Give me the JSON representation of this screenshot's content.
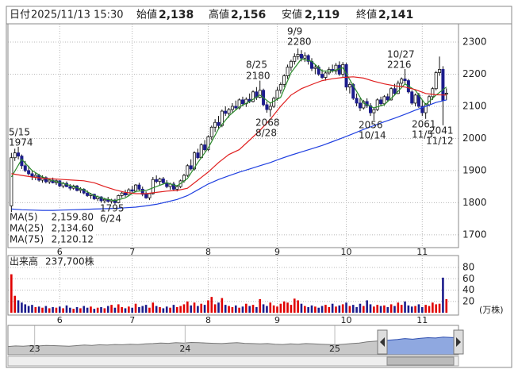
{
  "chart_data": {
    "type": "candlestick",
    "header": {
      "date_label": "日付",
      "date": "2025/11/13 15:30",
      "open_label": "始値",
      "open": {
        "value": 2138,
        "label": "2,138"
      },
      "high_label": "高値",
      "high": {
        "value": 2156,
        "label": "2,156"
      },
      "low_label": "安値",
      "low": {
        "value": 2119,
        "label": "2,119"
      },
      "close_label": "終値",
      "close": {
        "value": 2141,
        "label": "2,141"
      }
    },
    "up_color": "#ffffff",
    "down_color": "#1c1c8c",
    "high_color": "#e00000",
    "low_color": "#108010",
    "xlim": [
      -1,
      129.5
    ],
    "xticks": [
      {
        "value": 14,
        "label": "6"
      },
      {
        "value": 35,
        "label": "7"
      },
      {
        "value": 57,
        "label": "8"
      },
      {
        "value": 77,
        "label": "9"
      },
      {
        "value": 97,
        "label": "10"
      },
      {
        "value": 119,
        "label": "11"
      }
    ],
    "ylim": [
      1660,
      2357
    ],
    "yticks": [
      1700,
      1800,
      1900,
      2000,
      2100,
      2200,
      2300
    ],
    "grid": true,
    "candles": [
      [
        1790,
        1955,
        1770,
        1940
      ],
      [
        1940,
        1968,
        1930,
        1955
      ],
      [
        1955,
        1974,
        1935,
        1945
      ],
      [
        1945,
        1950,
        1905,
        1915
      ],
      [
        1915,
        1930,
        1895,
        1900
      ],
      [
        1900,
        1915,
        1885,
        1890
      ],
      [
        1890,
        1900,
        1870,
        1880
      ],
      [
        1880,
        1895,
        1870,
        1885
      ],
      [
        1885,
        1890,
        1865,
        1870
      ],
      [
        1870,
        1885,
        1862,
        1878
      ],
      [
        1878,
        1882,
        1860,
        1865
      ],
      [
        1865,
        1875,
        1858,
        1870
      ],
      [
        1870,
        1878,
        1860,
        1862
      ],
      [
        1862,
        1872,
        1855,
        1868
      ],
      [
        1868,
        1870,
        1848,
        1852
      ],
      [
        1852,
        1865,
        1845,
        1860
      ],
      [
        1860,
        1866,
        1848,
        1850
      ],
      [
        1850,
        1858,
        1838,
        1845
      ],
      [
        1845,
        1856,
        1840,
        1852
      ],
      [
        1852,
        1855,
        1835,
        1838
      ],
      [
        1838,
        1848,
        1830,
        1842
      ],
      [
        1842,
        1845,
        1826,
        1830
      ],
      [
        1830,
        1838,
        1818,
        1822
      ],
      [
        1822,
        1830,
        1812,
        1826
      ],
      [
        1826,
        1828,
        1808,
        1812
      ],
      [
        1812,
        1822,
        1805,
        1818
      ],
      [
        1818,
        1820,
        1800,
        1806
      ],
      [
        1806,
        1815,
        1798,
        1810
      ],
      [
        1810,
        1818,
        1800,
        1804
      ],
      [
        1804,
        1812,
        1797,
        1808
      ],
      [
        1808,
        1812,
        1795,
        1800
      ],
      [
        1800,
        1825,
        1798,
        1822
      ],
      [
        1822,
        1835,
        1815,
        1830
      ],
      [
        1830,
        1840,
        1818,
        1824
      ],
      [
        1824,
        1845,
        1820,
        1840
      ],
      [
        1840,
        1852,
        1830,
        1836
      ],
      [
        1836,
        1858,
        1832,
        1855
      ],
      [
        1855,
        1862,
        1838,
        1842
      ],
      [
        1842,
        1850,
        1820,
        1826
      ],
      [
        1826,
        1835,
        1812,
        1815
      ],
      [
        1815,
        1830,
        1808,
        1828
      ],
      [
        1828,
        1880,
        1825,
        1872
      ],
      [
        1872,
        1885,
        1860,
        1866
      ],
      [
        1866,
        1878,
        1855,
        1874
      ],
      [
        1874,
        1880,
        1858,
        1862
      ],
      [
        1862,
        1870,
        1845,
        1850
      ],
      [
        1850,
        1862,
        1840,
        1858
      ],
      [
        1858,
        1865,
        1838,
        1842
      ],
      [
        1842,
        1855,
        1835,
        1850
      ],
      [
        1850,
        1872,
        1845,
        1868
      ],
      [
        1868,
        1890,
        1862,
        1885
      ],
      [
        1885,
        1920,
        1880,
        1915
      ],
      [
        1915,
        1935,
        1900,
        1905
      ],
      [
        1905,
        1960,
        1900,
        1955
      ],
      [
        1955,
        1968,
        1935,
        1940
      ],
      [
        1940,
        1985,
        1938,
        1980
      ],
      [
        1980,
        1995,
        1960,
        1965
      ],
      [
        1965,
        2010,
        1960,
        2005
      ],
      [
        2005,
        2040,
        1995,
        2035
      ],
      [
        2035,
        2060,
        2020,
        2050
      ],
      [
        2050,
        2070,
        2030,
        2040
      ],
      [
        2040,
        2090,
        2035,
        2085
      ],
      [
        2085,
        2100,
        2070,
        2078
      ],
      [
        2078,
        2095,
        2065,
        2090
      ],
      [
        2090,
        2110,
        2080,
        2100
      ],
      [
        2100,
        2118,
        2088,
        2095
      ],
      [
        2095,
        2125,
        2090,
        2120
      ],
      [
        2120,
        2130,
        2100,
        2108
      ],
      [
        2108,
        2128,
        2098,
        2122
      ],
      [
        2122,
        2140,
        2110,
        2115
      ],
      [
        2115,
        2150,
        2112,
        2145
      ],
      [
        2145,
        2160,
        2120,
        2128
      ],
      [
        2128,
        2180,
        2125,
        2150
      ],
      [
        2150,
        2155,
        2100,
        2105
      ],
      [
        2105,
        2115,
        2080,
        2090
      ],
      [
        2090,
        2110,
        2068,
        2100
      ],
      [
        2100,
        2130,
        2095,
        2125
      ],
      [
        2125,
        2160,
        2118,
        2150
      ],
      [
        2150,
        2175,
        2140,
        2168
      ],
      [
        2168,
        2200,
        2160,
        2195
      ],
      [
        2195,
        2230,
        2185,
        2222
      ],
      [
        2222,
        2245,
        2210,
        2240
      ],
      [
        2240,
        2265,
        2230,
        2255
      ],
      [
        2255,
        2280,
        2245,
        2262
      ],
      [
        2262,
        2275,
        2240,
        2250
      ],
      [
        2250,
        2268,
        2238,
        2258
      ],
      [
        2258,
        2262,
        2230,
        2240
      ],
      [
        2240,
        2250,
        2210,
        2218
      ],
      [
        2218,
        2230,
        2200,
        2222
      ],
      [
        2222,
        2228,
        2195,
        2200
      ],
      [
        2200,
        2215,
        2185,
        2190
      ],
      [
        2190,
        2208,
        2180,
        2204
      ],
      [
        2204,
        2222,
        2198,
        2215
      ],
      [
        2215,
        2230,
        2205,
        2210
      ],
      [
        2210,
        2235,
        2200,
        2228
      ],
      [
        2228,
        2240,
        2195,
        2200
      ],
      [
        2200,
        2238,
        2190,
        2230
      ],
      [
        2230,
        2235,
        2150,
        2160
      ],
      [
        2160,
        2175,
        2140,
        2168
      ],
      [
        2168,
        2172,
        2120,
        2125
      ],
      [
        2125,
        2140,
        2100,
        2110
      ],
      [
        2110,
        2125,
        2085,
        2095
      ],
      [
        2095,
        2120,
        2090,
        2115
      ],
      [
        2115,
        2125,
        2095,
        2102
      ],
      [
        2102,
        2110,
        2070,
        2080
      ],
      [
        2080,
        2095,
        2056,
        2090
      ],
      [
        2090,
        2125,
        2085,
        2120
      ],
      [
        2120,
        2130,
        2100,
        2108
      ],
      [
        2108,
        2135,
        2102,
        2130
      ],
      [
        2130,
        2140,
        2115,
        2120
      ],
      [
        2120,
        2160,
        2118,
        2155
      ],
      [
        2155,
        2170,
        2135,
        2140
      ],
      [
        2140,
        2180,
        2138,
        2172
      ],
      [
        2172,
        2190,
        2160,
        2185
      ],
      [
        2185,
        2216,
        2170,
        2180
      ],
      [
        2180,
        2185,
        2140,
        2145
      ],
      [
        2145,
        2150,
        2105,
        2110
      ],
      [
        2110,
        2140,
        2100,
        2135
      ],
      [
        2135,
        2142,
        2095,
        2100
      ],
      [
        2100,
        2120,
        2070,
        2080
      ],
      [
        2080,
        2110,
        2061,
        2105
      ],
      [
        2105,
        2135,
        2100,
        2130
      ],
      [
        2130,
        2160,
        2120,
        2155
      ],
      [
        2155,
        2210,
        2150,
        2205
      ],
      [
        2205,
        2255,
        2195,
        2215
      ],
      [
        2215,
        2225,
        2041,
        2118
      ],
      [
        2138,
        2156,
        2119,
        2141
      ]
    ],
    "ma_x": [
      0,
      3,
      6,
      9,
      12,
      15,
      18,
      21,
      24,
      27,
      30,
      33,
      36,
      39,
      42,
      45,
      48,
      51,
      54,
      57,
      60,
      63,
      66,
      69,
      72,
      75,
      78,
      81,
      84,
      87,
      90,
      93,
      96,
      99,
      102,
      105,
      108,
      111,
      114,
      117,
      120,
      123,
      126
    ],
    "series": [
      {
        "name": "MA(5)",
        "color": "#2a8a2a",
        "last": {
          "value": 2159.8,
          "label": "2,159.80"
        },
        "values": [
          1880,
          1935,
          1900,
          1880,
          1868,
          1860,
          1850,
          1840,
          1822,
          1812,
          1806,
          1815,
          1835,
          1838,
          1850,
          1862,
          1852,
          1875,
          1925,
          1970,
          2030,
          2070,
          2098,
          2115,
          2135,
          2110,
          2128,
          2205,
          2248,
          2240,
          2210,
          2210,
          2220,
          2165,
          2110,
          2095,
          2105,
          2135,
          2170,
          2150,
          2105,
          2135,
          2160
        ]
      },
      {
        "name": "MA(25)",
        "color": "#e02020",
        "last": {
          "value": 2134.6,
          "label": "2,134.60"
        },
        "values": [
          1890,
          1885,
          1880,
          1876,
          1874,
          1872,
          1870,
          1868,
          1862,
          1850,
          1840,
          1832,
          1828,
          1828,
          1832,
          1836,
          1838,
          1845,
          1870,
          1895,
          1925,
          1950,
          1965,
          1995,
          2025,
          2060,
          2100,
          2135,
          2155,
          2168,
          2180,
          2186,
          2190,
          2192,
          2188,
          2178,
          2170,
          2164,
          2160,
          2152,
          2140,
          2136,
          2135
        ]
      },
      {
        "name": "MA(75)",
        "color": "#2040e0",
        "last": {
          "value": 2120.12,
          "label": "2,120.12"
        },
        "values": [
          1780,
          1778,
          1777,
          1776,
          1776,
          1777,
          1778,
          1779,
          1780,
          1781,
          1782,
          1784,
          1786,
          1790,
          1795,
          1802,
          1810,
          1822,
          1840,
          1858,
          1872,
          1884,
          1895,
          1905,
          1915,
          1925,
          1937,
          1948,
          1958,
          1968,
          1978,
          1990,
          2002,
          2015,
          2028,
          2040,
          2052,
          2063,
          2075,
          2088,
          2100,
          2112,
          2120
        ]
      }
    ],
    "annotations": [
      {
        "date": "5/15",
        "price": 1974
      },
      {
        "date": "9/9",
        "price": 2280
      },
      {
        "date": "8/25",
        "price": 2180
      },
      {
        "date": "10/27",
        "price": 2216
      },
      {
        "date": "6/24",
        "price": 1795
      },
      {
        "date": "8/28",
        "price": 2068
      },
      {
        "date": "10/14",
        "price": 2056
      },
      {
        "date": "11/5",
        "price": 2061
      },
      {
        "date": "11/12",
        "price": 2041
      }
    ],
    "volume": {
      "label": "出来高",
      "current": {
        "value": 237700,
        "label": "237,700株"
      },
      "unit": "(万株)",
      "ylim": [
        -4,
        101
      ],
      "yticks": [
        20,
        40,
        60,
        80
      ],
      "values": [
        68,
        30,
        22,
        18,
        15,
        12,
        14,
        10,
        11,
        9,
        12,
        8,
        10,
        9,
        11,
        8,
        13,
        9,
        7,
        10,
        8,
        12,
        9,
        11,
        7,
        9,
        10,
        8,
        12,
        14,
        9,
        15,
        10,
        8,
        11,
        9,
        16,
        10,
        12,
        14,
        9,
        18,
        12,
        10,
        8,
        11,
        9,
        14,
        10,
        12,
        15,
        20,
        13,
        18,
        12,
        16,
        14,
        22,
        28,
        15,
        18,
        26,
        14,
        12,
        10,
        13,
        9,
        11,
        16,
        12,
        14,
        10,
        24,
        15,
        12,
        18,
        13,
        11,
        16,
        20,
        18,
        14,
        25,
        22,
        16,
        12,
        10,
        13,
        11,
        9,
        12,
        14,
        10,
        16,
        11,
        13,
        15,
        18,
        12,
        14,
        10,
        16,
        12,
        22,
        15,
        11,
        14,
        12,
        13,
        10,
        15,
        12,
        18,
        14,
        20,
        13,
        11,
        12,
        15,
        10,
        14,
        12,
        18,
        15,
        16,
        62,
        24
      ]
    },
    "overview": {
      "xlim": [
        0,
        59
      ],
      "ylim": [
        0,
        100
      ],
      "xticks": [
        {
          "value": 3.5,
          "label": "23"
        },
        {
          "value": 23.2,
          "label": "24"
        },
        {
          "value": 42.8,
          "label": "25"
        }
      ],
      "values": [
        28,
        30,
        29,
        31,
        30,
        32,
        31,
        30,
        29,
        31,
        33,
        32,
        34,
        33,
        35,
        34,
        36,
        35,
        37,
        38,
        40,
        39,
        41,
        40,
        42,
        41,
        40,
        39,
        38,
        40,
        41,
        39,
        38,
        37,
        38,
        36,
        35,
        37,
        36,
        38,
        37,
        36,
        35,
        34,
        36,
        38,
        40,
        44,
        46,
        48,
        50,
        52,
        55,
        53,
        56,
        58,
        57,
        60,
        59,
        58
      ]
    }
  }
}
